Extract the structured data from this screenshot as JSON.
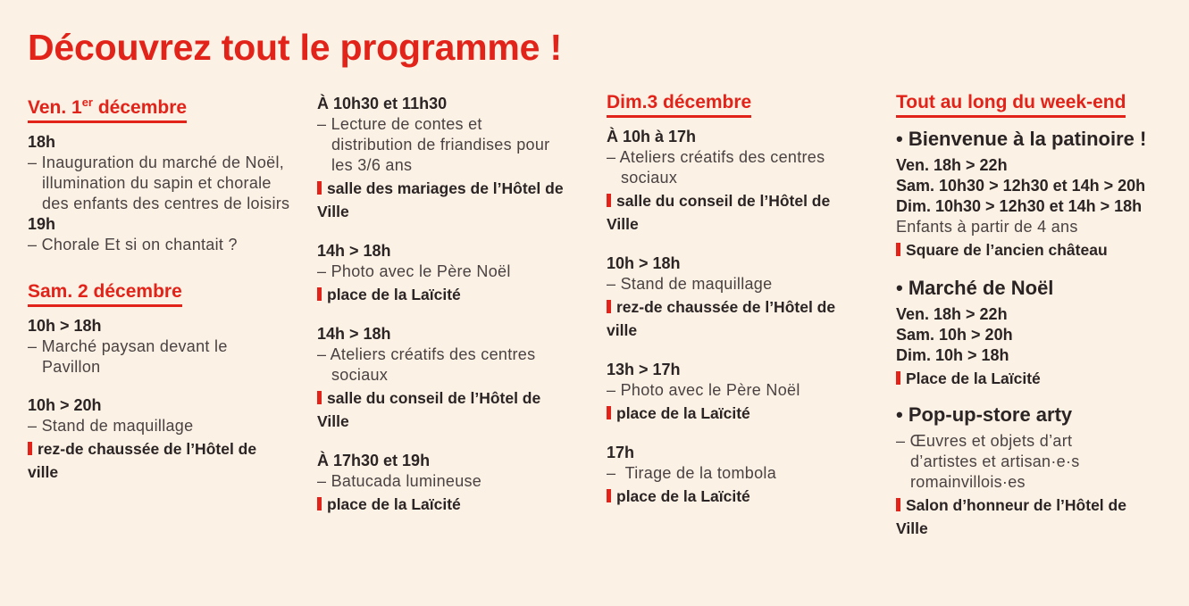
{
  "title": "Découvrez tout le programme !",
  "col1": {
    "day1": {
      "label": "Ven. 1",
      "sup": "er",
      "rest": " décembre"
    },
    "e1": {
      "time": "18h",
      "lines": [
        "– Inauguration du marché de Noël, illumination du sapin et chorale des enfants des centres de loisirs"
      ]
    },
    "e2": {
      "time": "19h",
      "lines": [
        "– Chorale Et si on chantait ?"
      ]
    },
    "day2": "Sam. 2 décembre",
    "e3": {
      "time": "10h > 18h",
      "lines": [
        "– Marché paysan devant le Pavillon"
      ]
    },
    "e4": {
      "time": "10h > 20h",
      "desc": "– Stand de maquillage",
      "place": "rez-de chaussée de l’Hôtel de ville"
    }
  },
  "col2": {
    "e1": {
      "time": "À 10h30 et 11h30",
      "desc": "– Lecture de contes et distribution de friandises pour les 3/6 ans",
      "place": "salle des mariages de l’Hôtel de Ville"
    },
    "e2": {
      "time": "14h > 18h",
      "desc": "– Photo avec le Père Noël",
      "place": "place de la Laïcité"
    },
    "e3": {
      "time": "14h > 18h",
      "desc": "– Ateliers créatifs des centres sociaux",
      "place": "salle du conseil de l’Hôtel de Ville"
    },
    "e4": {
      "time": "À 17h30 et 19h",
      "desc": "– Batucada lumineuse",
      "place": "place de la Laïcité"
    }
  },
  "col3": {
    "day": "Dim.3 décembre",
    "e1": {
      "time": "À 10h à 17h",
      "desc": "– Ateliers créatifs des centres sociaux",
      "place": "salle du conseil de l’Hôtel de Ville"
    },
    "e2": {
      "time": "10h > 18h",
      "desc": "– Stand de maquillage",
      "place": "rez-de chaussée de l’Hôtel de ville"
    },
    "e3": {
      "time": "13h > 17h",
      "desc": "– Photo avec le Père Noël",
      "place": "place de la Laïcité"
    },
    "e4": {
      "time": "17h",
      "desc": "–  Tirage de la tombola",
      "place": "place de la Laïcité"
    }
  },
  "col4": {
    "day": "Tout au long du week-end",
    "s1": {
      "title": "• Bienvenue à la patinoire !",
      "t1": "Ven. 18h > 22h",
      "t2": "Sam. 10h30 > 12h30 et 14h > 20h",
      "t3": "Dim. 10h30 > 12h30 et 14h > 18h",
      "desc": "Enfants à partir de 4 ans",
      "place": "Square de l’ancien château"
    },
    "s2": {
      "title": "• Marché de Noël",
      "t1": "Ven. 18h > 22h",
      "t2": "Sam. 10h > 20h",
      "t3": "Dim. 10h > 18h",
      "place": "Place de la Laïcité"
    },
    "s3": {
      "title": "• Pop-up-store arty",
      "desc": "– Œuvres et objets d’art d’artistes et artisan·e·s romainvillois·es",
      "place": "Salon d’honneur de l’Hôtel de Ville"
    }
  }
}
